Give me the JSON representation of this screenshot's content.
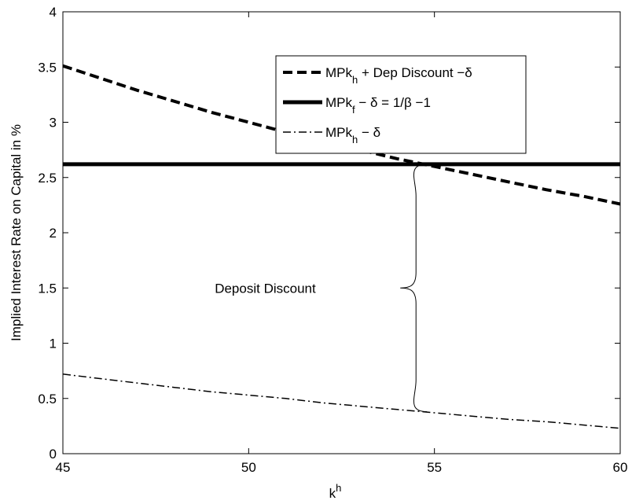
{
  "chart_data": {
    "type": "line",
    "title": "",
    "xlabel": "k",
    "xlabel_sup": "h",
    "ylabel": "Implied Interest Rate on Capital in %",
    "xlim": [
      45,
      60
    ],
    "ylim": [
      0,
      4
    ],
    "xticks": [
      45,
      50,
      55,
      60
    ],
    "yticks": [
      0,
      0.5,
      1,
      1.5,
      2,
      2.5,
      3,
      3.5,
      4
    ],
    "ytick_labels": [
      "0",
      "0.5",
      "1",
      "1.5",
      "2",
      "2.5",
      "3",
      "3.5",
      "4"
    ],
    "grid": false,
    "legend_position": "top-right",
    "series": [
      {
        "legend": [
          {
            "t": "MPk"
          },
          {
            "t": "h",
            "sub": true
          },
          {
            "t": " + Dep Discount −δ"
          }
        ],
        "style": "dashed",
        "x": [
          45,
          46,
          47,
          48,
          49,
          50,
          51,
          52,
          53,
          54,
          55,
          56,
          57,
          58,
          59,
          60
        ],
        "y": [
          3.51,
          3.4,
          3.29,
          3.19,
          3.09,
          3.0,
          2.91,
          2.83,
          2.75,
          2.67,
          2.6,
          2.53,
          2.46,
          2.39,
          2.33,
          2.26
        ]
      },
      {
        "legend": [
          {
            "t": "MPk"
          },
          {
            "t": "f",
            "sub": true
          },
          {
            "t": " − δ = 1/β −1"
          }
        ],
        "style": "solid",
        "x": [
          45,
          60
        ],
        "y": [
          2.62,
          2.62
        ]
      },
      {
        "legend": [
          {
            "t": "MPk"
          },
          {
            "t": "h",
            "sub": true
          },
          {
            "t": " − δ"
          }
        ],
        "style": "dashdot",
        "x": [
          45,
          46,
          47,
          48,
          49,
          50,
          51,
          52,
          53,
          54,
          55,
          56,
          57,
          58,
          59,
          60
        ],
        "y": [
          0.72,
          0.68,
          0.64,
          0.6,
          0.56,
          0.53,
          0.5,
          0.46,
          0.43,
          0.4,
          0.37,
          0.34,
          0.31,
          0.29,
          0.26,
          0.23
        ]
      }
    ],
    "annotation": {
      "text": "Deposit Discount",
      "x": 54.8,
      "y_low": 0.38,
      "y_high": 2.62
    }
  }
}
